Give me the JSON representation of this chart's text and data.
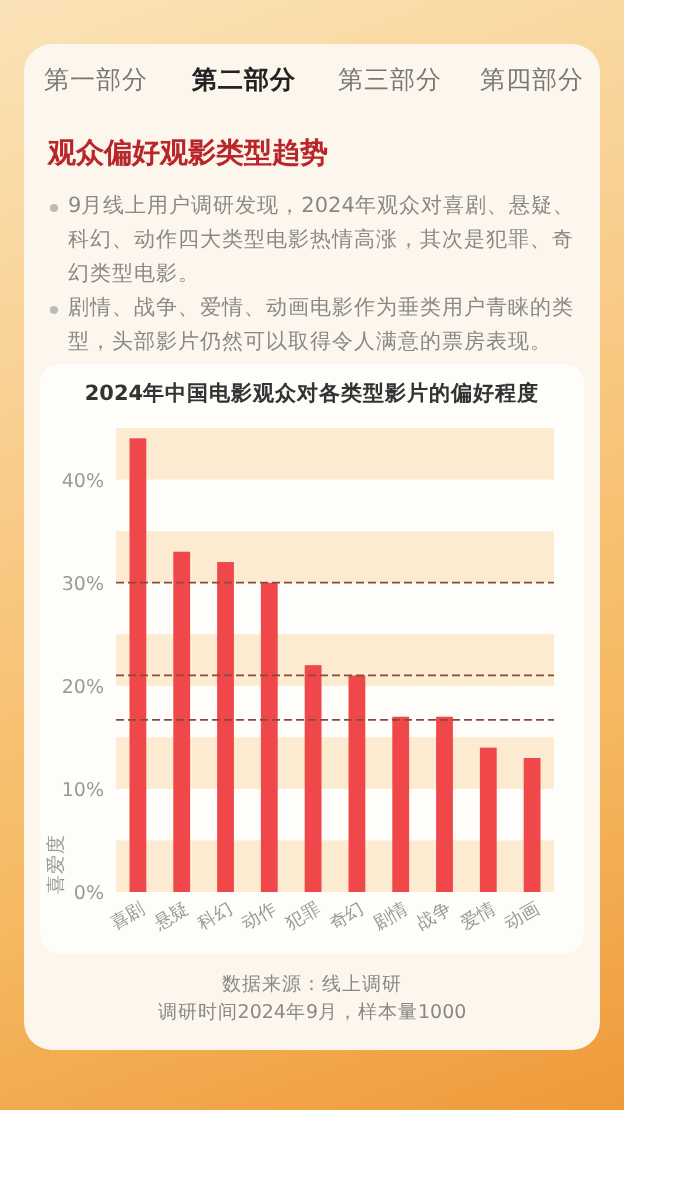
{
  "chart_data": {
    "type": "bar",
    "title": "2024年中国电影观众对各类型影片的偏好程度",
    "ylabel": "喜爱度",
    "categories": [
      "喜剧",
      "悬疑",
      "科幻",
      "动作",
      "犯罪",
      "奇幻",
      "剧情",
      "战争",
      "爱情",
      "动画"
    ],
    "values": [
      44,
      33,
      32,
      30,
      22,
      21,
      17,
      17,
      14,
      13
    ],
    "color": "#f0474b",
    "ylim": [
      0,
      45
    ],
    "yticks": [
      {
        "value": 0,
        "label": "0%"
      },
      {
        "value": 10,
        "label": "10%"
      },
      {
        "value": 20,
        "label": "20%"
      },
      {
        "value": 30,
        "label": "30%"
      },
      {
        "value": 40,
        "label": "40%"
      }
    ],
    "bands": [
      {
        "axis": "y",
        "from": 0,
        "to": 5,
        "label": null,
        "color": "#fcebd0"
      },
      {
        "axis": "y",
        "from": 10,
        "to": 15,
        "label": null,
        "color": "#fcebd0"
      },
      {
        "axis": "y",
        "from": 20,
        "to": 25,
        "label": null,
        "color": "#fcebd0"
      },
      {
        "axis": "y",
        "from": 30,
        "to": 35,
        "label": null,
        "color": "#fcebd0"
      },
      {
        "axis": "y",
        "from": 40,
        "to": 45,
        "label": null,
        "color": "#fcebd0"
      }
    ],
    "ref_lines": [
      {
        "axis": "y",
        "value": 30,
        "label": null,
        "color": "#8a4a3a",
        "line_style": "dashed"
      },
      {
        "axis": "y",
        "value": 21,
        "label": null,
        "color": "#8a4a3a",
        "line_style": "dashed"
      },
      {
        "axis": "y",
        "value": 16.7,
        "label": null,
        "color": "#8a4a3a",
        "line_style": "dashed"
      }
    ],
    "annotations": [
      "第一部分",
      "第二部分",
      "第三部分",
      "第四部分",
      "观众偏好观影类型趋势",
      "9月线上用户调研发现，2024年观众对喜剧、悬疑、科幻、动作四大类型电影热情高涨，其次是犯罪、奇幻类型电影。",
      "剧情、战争、爱情、动画电影作为垂类用户青睐的类型，头部影片仍然可以取得令人满意的票房表现。",
      "数据来源：线上调研",
      "调研时间2024年9月，样本量1000"
    ]
  }
}
